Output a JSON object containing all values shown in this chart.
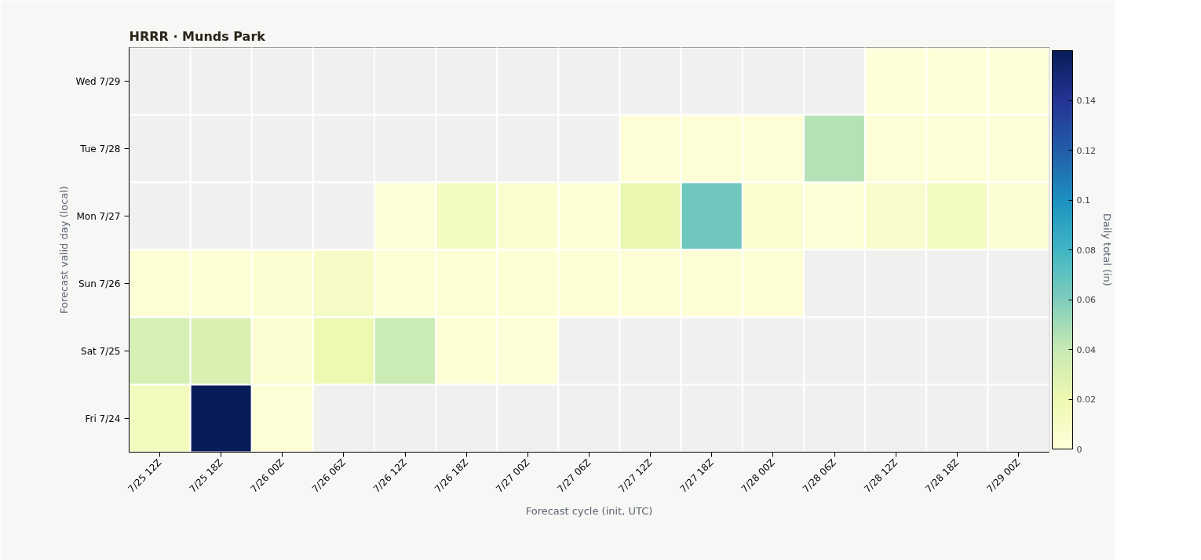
{
  "chart_data": {
    "type": "heatmap",
    "title": "HRRR · Munds Park",
    "xlabel": "Forecast cycle (init, UTC)",
    "ylabel": "Forecast valid day (local)",
    "clabel": "Daily total (in)",
    "categories": [
      "7/25 12Z",
      "7/25 18Z",
      "7/26 00Z",
      "7/26 06Z",
      "7/26 12Z",
      "7/26 18Z",
      "7/27 00Z",
      "7/27 06Z",
      "7/27 12Z",
      "7/27 18Z",
      "7/28 00Z",
      "7/28 06Z",
      "7/28 12Z",
      "7/28 18Z",
      "7/29 00Z"
    ],
    "y_categories": [
      "Wed 7/29",
      "Tue 7/28",
      "Mon 7/27",
      "Sun 7/26",
      "Sat 7/25",
      "Fri 7/24"
    ],
    "cells": [
      [
        null,
        null,
        null,
        null,
        null,
        null,
        null,
        null,
        null,
        null,
        null,
        null,
        0.001,
        0.001,
        0.001
      ],
      [
        null,
        null,
        null,
        null,
        null,
        null,
        null,
        null,
        0.002,
        0.002,
        0.002,
        0.045,
        0.002,
        0.002,
        0.002
      ],
      [
        null,
        null,
        null,
        null,
        0.002,
        0.012,
        0.006,
        0.003,
        0.022,
        0.065,
        0.006,
        0.002,
        0.008,
        0.012,
        0.004
      ],
      [
        0.003,
        0.003,
        0.004,
        0.01,
        0.003,
        0.003,
        0.003,
        0.003,
        0.003,
        0.003,
        0.003,
        null,
        null,
        null,
        null
      ],
      [
        0.032,
        0.03,
        0.004,
        0.02,
        0.038,
        0.003,
        0.002,
        null,
        null,
        null,
        null,
        null,
        null,
        null,
        null
      ],
      [
        0.014,
        0.16,
        0.002,
        null,
        null,
        null,
        null,
        null,
        null,
        null,
        null,
        null,
        null,
        null,
        null
      ]
    ],
    "clim": [
      0,
      0.16
    ],
    "cticks": [
      0,
      0.02,
      0.04,
      0.06,
      0.08,
      0.1,
      0.12,
      0.14
    ]
  }
}
